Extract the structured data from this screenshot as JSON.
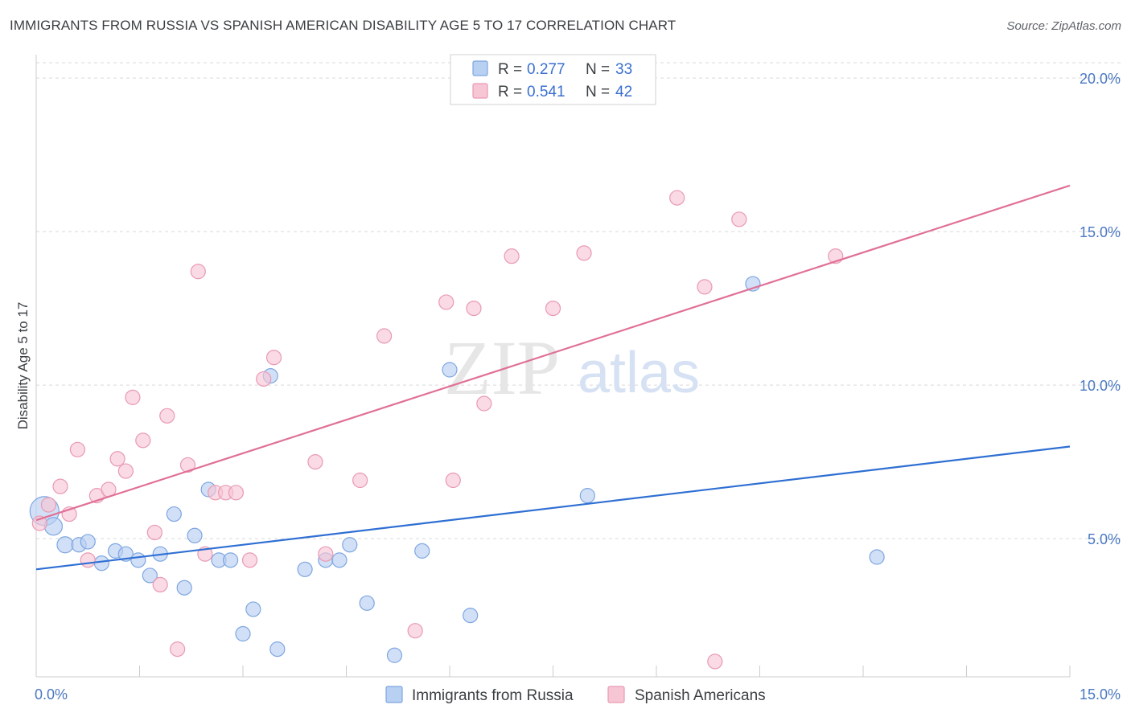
{
  "title": "IMMIGRANTS FROM RUSSIA VS SPANISH AMERICAN DISABILITY AGE 5 TO 17 CORRELATION CHART",
  "source": "Source: ZipAtlas.com",
  "watermark": {
    "zip": "ZIP",
    "atlas": "atlas"
  },
  "colors": {
    "blue_fill": "#b8d0f2",
    "blue_stroke": "#7ea6e0",
    "blue_line": "#2f6fd3",
    "pink_fill": "#f7c6d5",
    "pink_stroke": "#e99ab3",
    "pink_line": "#e07096",
    "grid": "#d9d9d9",
    "axis": "#cccccc",
    "tick_text": "#4a78c2"
  },
  "legend": {
    "rows": [
      {
        "r_label": "R = ",
        "r_value": "0.277",
        "n_label": "N = ",
        "n_value": "33"
      },
      {
        "r_label": "R = ",
        "r_value": "0.541",
        "n_label": "N = ",
        "n_value": "42"
      }
    ]
  },
  "chart_data": {
    "type": "scatter",
    "title": "IMMIGRANTS FROM RUSSIA VS SPANISH AMERICAN DISABILITY AGE 5 TO 17 CORRELATION CHART",
    "xlabel": "",
    "ylabel": "Disability Age 5 to 17",
    "xlim": [
      0,
      15
    ],
    "ylim": [
      0.5,
      20.5
    ],
    "x_ticks": [
      {
        "value": 0,
        "label": "0.0%"
      },
      {
        "value": 15,
        "label": "15.0%"
      }
    ],
    "y_ticks": [
      {
        "value": 5,
        "label": "5.0%"
      },
      {
        "value": 10,
        "label": "10.0%"
      },
      {
        "value": 15,
        "label": "15.0%"
      },
      {
        "value": 20,
        "label": "20.0%"
      }
    ],
    "grid": true,
    "legend_position": "top-center",
    "series": [
      {
        "name": "Immigrants from Russia",
        "color": "#7ea6e0",
        "trend": {
          "x0": 0,
          "y0": 4.0,
          "x1": 15,
          "y1": 8.0
        },
        "points": [
          [
            0.12,
            5.9,
            18
          ],
          [
            0.25,
            5.4,
            11
          ],
          [
            0.42,
            4.8,
            10
          ],
          [
            0.62,
            4.8,
            9
          ],
          [
            0.75,
            4.9,
            9
          ],
          [
            0.95,
            4.2,
            9
          ],
          [
            1.15,
            4.6,
            9
          ],
          [
            1.3,
            4.5,
            9
          ],
          [
            1.48,
            4.3,
            9
          ],
          [
            1.65,
            3.8,
            9
          ],
          [
            1.8,
            4.5,
            9
          ],
          [
            2.15,
            3.4,
            9
          ],
          [
            2.0,
            5.8,
            9
          ],
          [
            2.3,
            5.1,
            9
          ],
          [
            2.5,
            6.6,
            9
          ],
          [
            2.65,
            4.3,
            9
          ],
          [
            2.82,
            4.3,
            9
          ],
          [
            3.0,
            1.9,
            9
          ],
          [
            3.15,
            2.7,
            9
          ],
          [
            3.4,
            10.3,
            9
          ],
          [
            3.5,
            1.4,
            9
          ],
          [
            3.9,
            4.0,
            9
          ],
          [
            4.2,
            4.3,
            9
          ],
          [
            4.4,
            4.3,
            9
          ],
          [
            4.55,
            4.8,
            9
          ],
          [
            4.8,
            2.9,
            9
          ],
          [
            5.2,
            1.2,
            9
          ],
          [
            5.6,
            4.6,
            9
          ],
          [
            6.0,
            10.5,
            9
          ],
          [
            6.3,
            2.5,
            9
          ],
          [
            8.0,
            6.4,
            9
          ],
          [
            10.4,
            13.3,
            9
          ],
          [
            12.2,
            4.4,
            9
          ]
        ]
      },
      {
        "name": "Spanish Americans",
        "color": "#e99ab3",
        "trend": {
          "x0": 0,
          "y0": 5.6,
          "x1": 15,
          "y1": 16.5
        },
        "points": [
          [
            0.05,
            5.5,
            9
          ],
          [
            0.18,
            6.1,
            9
          ],
          [
            0.35,
            6.7,
            9
          ],
          [
            0.48,
            5.8,
            9
          ],
          [
            0.6,
            7.9,
            9
          ],
          [
            0.75,
            4.3,
            9
          ],
          [
            0.88,
            6.4,
            9
          ],
          [
            1.05,
            6.6,
            9
          ],
          [
            1.18,
            7.6,
            9
          ],
          [
            1.3,
            7.2,
            9
          ],
          [
            1.4,
            9.6,
            9
          ],
          [
            1.55,
            8.2,
            9
          ],
          [
            1.72,
            5.2,
            9
          ],
          [
            1.8,
            3.5,
            9
          ],
          [
            1.9,
            9.0,
            9
          ],
          [
            2.05,
            1.4,
            9
          ],
          [
            2.2,
            7.4,
            9
          ],
          [
            2.35,
            13.7,
            9
          ],
          [
            2.45,
            4.5,
            9
          ],
          [
            2.6,
            6.5,
            9
          ],
          [
            2.75,
            6.5,
            9
          ],
          [
            2.9,
            6.5,
            9
          ],
          [
            3.1,
            4.3,
            9
          ],
          [
            3.3,
            10.2,
            9
          ],
          [
            3.45,
            10.9,
            9
          ],
          [
            4.05,
            7.5,
            9
          ],
          [
            4.2,
            4.5,
            9
          ],
          [
            4.7,
            6.9,
            9
          ],
          [
            5.05,
            11.6,
            9
          ],
          [
            5.5,
            2.0,
            9
          ],
          [
            5.95,
            12.7,
            9
          ],
          [
            6.05,
            6.9,
            9
          ],
          [
            6.35,
            12.5,
            9
          ],
          [
            6.5,
            9.4,
            9
          ],
          [
            6.9,
            14.2,
            9
          ],
          [
            7.5,
            12.5,
            9
          ],
          [
            7.95,
            14.3,
            9
          ],
          [
            9.3,
            16.1,
            9
          ],
          [
            9.7,
            13.2,
            9
          ],
          [
            9.85,
            1.0,
            9
          ],
          [
            10.2,
            15.4,
            9
          ],
          [
            11.6,
            14.2,
            9
          ]
        ]
      }
    ]
  }
}
